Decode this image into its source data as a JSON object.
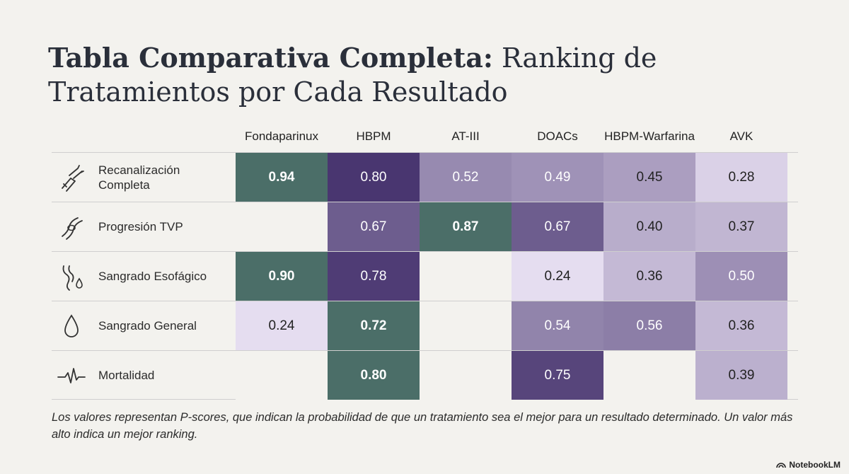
{
  "title": {
    "bold_part": "Tabla Comparativa Completa:",
    "regular_part": " Ranking de Tratamientos por Cada Resultado"
  },
  "colors": {
    "best": "#4b6e68",
    "empty": "#f3f2ee",
    "dark_text": "#222222",
    "light_text": "#ffffff"
  },
  "chart_data": {
    "type": "heatmap",
    "title": "Tabla Comparativa Completa: Ranking de Tratamientos por Cada Resultado",
    "columns": [
      "Fondaparinux",
      "HBPM",
      "AT-III",
      "DOACs",
      "HBPM-Warfarina",
      "AVK"
    ],
    "rows": [
      {
        "label": "Recanalización Completa",
        "icon": "vein-icon",
        "values": [
          0.94,
          0.8,
          0.52,
          0.49,
          0.45,
          0.28
        ],
        "display": [
          "0.94",
          "0.80",
          "0.52",
          "0.49",
          "0.45",
          "0.28"
        ],
        "best_index": 0
      },
      {
        "label": "Progresión TVP",
        "icon": "clot-icon",
        "values": [
          null,
          0.67,
          0.87,
          0.67,
          0.4,
          0.37
        ],
        "display": [
          "",
          "0.67",
          "0.87",
          "0.67",
          "0.40",
          "0.37"
        ],
        "best_index": 2
      },
      {
        "label": "Sangrado Esofágico",
        "icon": "esophagus-drop-icon",
        "values": [
          0.9,
          0.78,
          null,
          0.24,
          0.36,
          0.5
        ],
        "display": [
          "0.90",
          "0.78",
          "",
          "0.24",
          "0.36",
          "0.50"
        ],
        "best_index": 0
      },
      {
        "label": "Sangrado General",
        "icon": "blood-drop-icon",
        "values": [
          0.24,
          0.72,
          null,
          0.54,
          0.56,
          0.36
        ],
        "display": [
          "0.24",
          "0.72",
          "",
          "0.54",
          "0.56",
          "0.36"
        ],
        "best_index": 1
      },
      {
        "label": "Mortalidad",
        "icon": "heartbeat-icon",
        "values": [
          null,
          0.8,
          null,
          0.75,
          null,
          0.39
        ],
        "display": [
          "",
          "0.80",
          "",
          "0.75",
          "",
          "0.39"
        ],
        "best_index": 1
      }
    ]
  },
  "footnote": "Los valores representan P-scores, que indican la probabilidad de que un tratamiento sea el mejor para un resultado determinado. Un valor más alto indica un mejor ranking.",
  "brand": "NotebookLM"
}
